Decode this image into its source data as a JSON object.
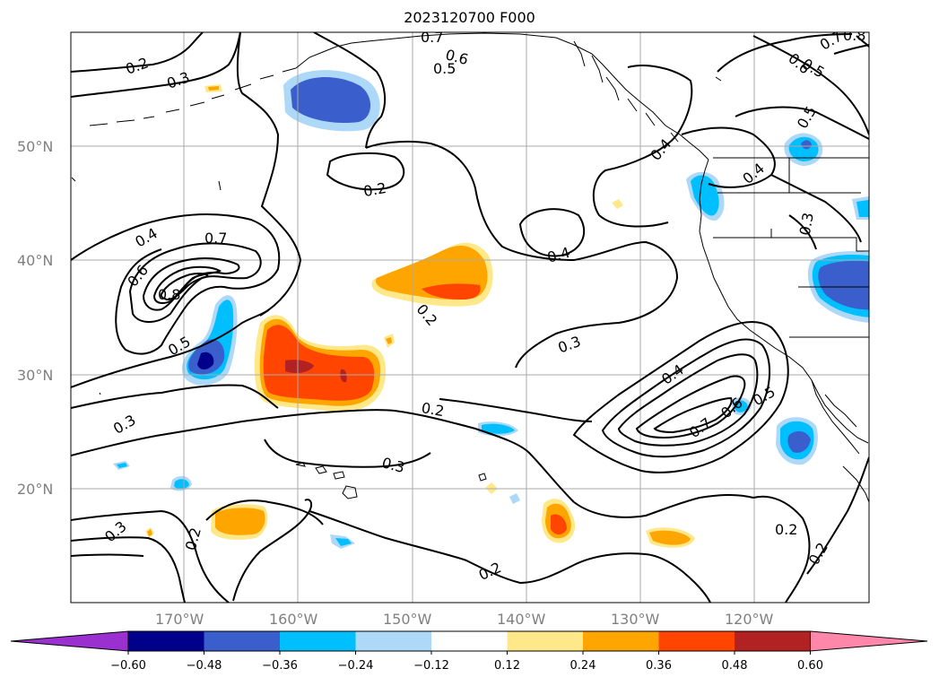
{
  "title": "2023120700 F000",
  "lat_labels": [
    "50°N",
    "40°N",
    "30°N",
    "20°N"
  ],
  "lon_labels": [
    "170°W",
    "160°W",
    "150°W",
    "140°W",
    "130°W",
    "120°W"
  ],
  "contour_labels": [
    "0.2",
    "0.3",
    "0.5",
    "0.6",
    "0.7",
    "0.8",
    "0.2",
    "0.4",
    "0.6",
    "0.7",
    "0.8",
    "0.5",
    "0.3",
    "0.2",
    "0.4",
    "0.3",
    "0.2",
    "0.3",
    "0.2",
    "0.3",
    "0.2",
    "0.4",
    "0.7",
    "0.6",
    "0.5",
    "0.2",
    "0.2",
    "0.4",
    "0.5",
    "0.4",
    "0.3",
    "0.7",
    "0.6",
    "0.5"
  ],
  "colorbar": {
    "ticks": [
      "−0.60",
      "−0.48",
      "−0.36",
      "−0.24",
      "−0.12",
      "0.12",
      "0.24",
      "0.36",
      "0.48",
      "0.60"
    ],
    "colors": [
      "#9b30d0",
      "#00008b",
      "#3a5fcd",
      "#00bfff",
      "#add8f7",
      "#ffffff",
      "#ffe88a",
      "#ffa500",
      "#ff4500",
      "#b22222",
      "#ff88aa"
    ]
  },
  "fill_colors": {
    "neg_light": "#add8f7",
    "neg_mid": "#00bfff",
    "neg_dark": "#3a5fcd",
    "neg_darkest": "#00008b",
    "pos_light": "#ffe88a",
    "pos_mid": "#ffa500",
    "pos_dark": "#ff4500",
    "pos_darkest": "#b22222"
  }
}
